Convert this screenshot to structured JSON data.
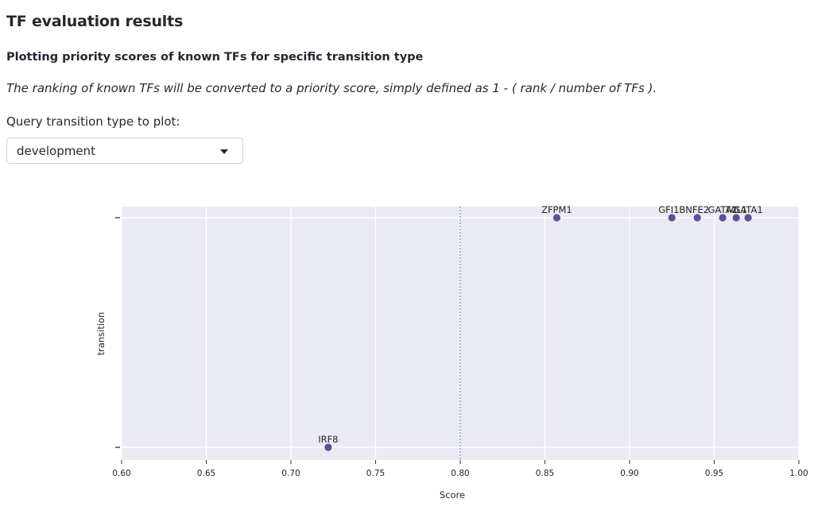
{
  "page": {
    "title": "TF evaluation results",
    "subtitle": "Plotting priority scores of known TFs for specific transition type",
    "description": "The ranking of known TFs will be converted to a priority score, simply defined as 1 - ( rank / number of TFs ).",
    "select_label": "Query transition type to plot:",
    "select_value": "development"
  },
  "colors": {
    "point": "#55519e",
    "plot_background": "#eaeaf2",
    "grid": "#ffffff",
    "threshold_line": "#5a6bb8"
  },
  "chart_data": {
    "type": "scatter",
    "xlabel": "Score",
    "ylabel": "transition",
    "xlim": [
      0.6,
      1.0
    ],
    "x_ticks": [
      "0.60",
      "0.65",
      "0.70",
      "0.75",
      "0.80",
      "0.85",
      "0.90",
      "0.95",
      "1.00"
    ],
    "y_categories": [
      "",
      ""
    ],
    "threshold_x": 0.8,
    "grid": true,
    "points": [
      {
        "label": "ZFPM1",
        "x": 0.857,
        "row": 0
      },
      {
        "label": "GFI1B",
        "x": 0.925,
        "row": 0
      },
      {
        "label": "NFE2",
        "x": 0.94,
        "row": 0
      },
      {
        "label": "GATA2",
        "x": 0.955,
        "row": 0
      },
      {
        "label": "TAL1",
        "x": 0.963,
        "row": 0
      },
      {
        "label": "GATA1",
        "x": 0.97,
        "row": 0
      },
      {
        "label": "IRF8",
        "x": 0.722,
        "row": 1
      }
    ]
  }
}
